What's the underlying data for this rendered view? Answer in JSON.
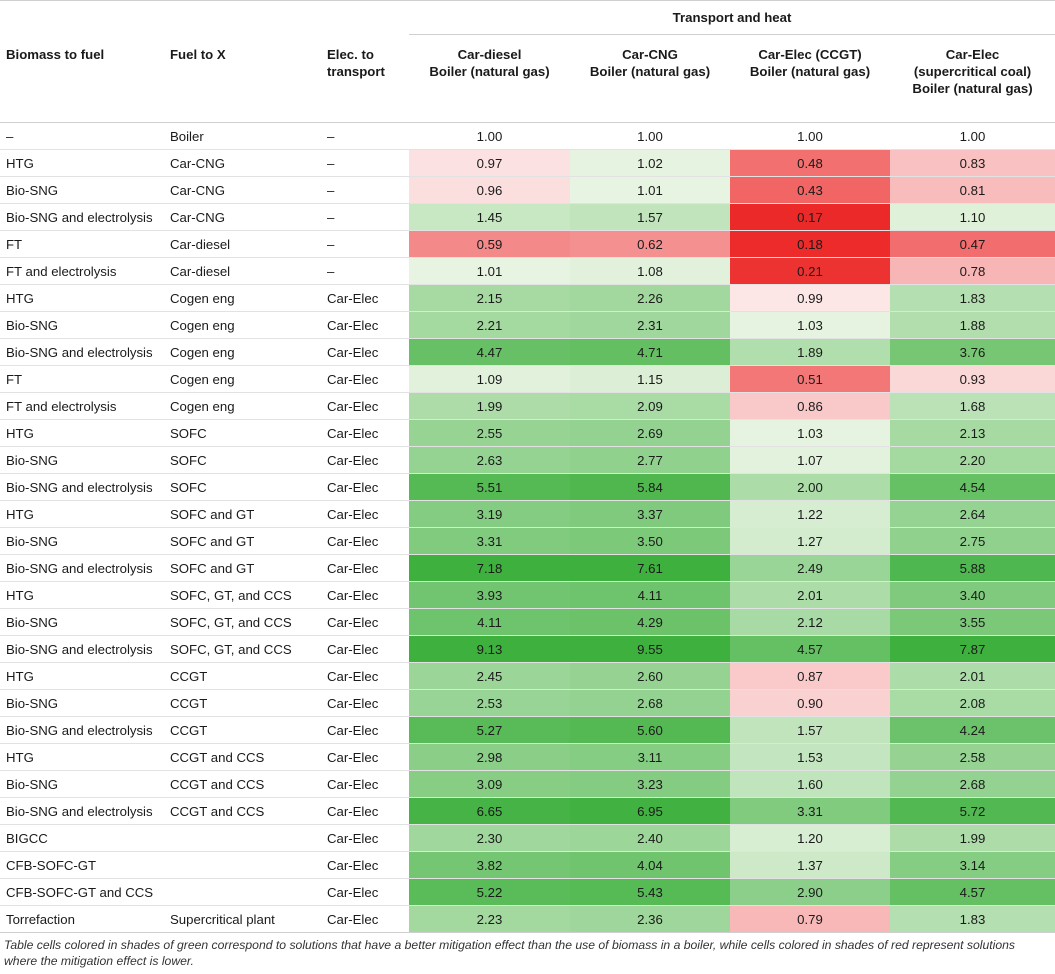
{
  "header": {
    "group": "Transport and heat",
    "col1": "Biomass to fuel",
    "col2": "Fuel to X",
    "col3": [
      "Elec. to",
      "transport"
    ],
    "col4": [
      "Car-diesel",
      "Boiler (natural gas)"
    ],
    "col5": [
      "Car-CNG",
      "Boiler (natural gas)"
    ],
    "col6": [
      "Car-Elec (CCGT)",
      "Boiler (natural gas)"
    ],
    "col7": [
      "Car-Elec",
      "(supercritical coal)",
      "Boiler (natural gas)"
    ]
  },
  "rows": [
    {
      "bio": "–",
      "fuel": "Boiler",
      "elec": "–",
      "v": [
        "1.00",
        "1.00",
        "1.00",
        "1.00"
      ]
    },
    {
      "bio": "HTG",
      "fuel": "Car-CNG",
      "elec": "–",
      "v": [
        "0.97",
        "1.02",
        "0.48",
        "0.83"
      ]
    },
    {
      "bio": "Bio-SNG",
      "fuel": "Car-CNG",
      "elec": "–",
      "v": [
        "0.96",
        "1.01",
        "0.43",
        "0.81"
      ]
    },
    {
      "bio": "Bio-SNG and electrolysis",
      "fuel": "Car-CNG",
      "elec": "–",
      "v": [
        "1.45",
        "1.57",
        "0.17",
        "1.10"
      ]
    },
    {
      "bio": "FT",
      "fuel": "Car-diesel",
      "elec": "–",
      "v": [
        "0.59",
        "0.62",
        "0.18",
        "0.47"
      ]
    },
    {
      "bio": "FT and electrolysis",
      "fuel": "Car-diesel",
      "elec": "–",
      "v": [
        "1.01",
        "1.08",
        "0.21",
        "0.78"
      ]
    },
    {
      "bio": "HTG",
      "fuel": "Cogen eng",
      "elec": "Car-Elec",
      "v": [
        "2.15",
        "2.26",
        "0.99",
        "1.83"
      ]
    },
    {
      "bio": "Bio-SNG",
      "fuel": "Cogen eng",
      "elec": "Car-Elec",
      "v": [
        "2.21",
        "2.31",
        "1.03",
        "1.88"
      ]
    },
    {
      "bio": "Bio-SNG and electrolysis",
      "fuel": "Cogen eng",
      "elec": "Car-Elec",
      "v": [
        "4.47",
        "4.71",
        "1.89",
        "3.76"
      ]
    },
    {
      "bio": "FT",
      "fuel": "Cogen eng",
      "elec": "Car-Elec",
      "v": [
        "1.09",
        "1.15",
        "0.51",
        "0.93"
      ]
    },
    {
      "bio": "FT and electrolysis",
      "fuel": "Cogen eng",
      "elec": "Car-Elec",
      "v": [
        "1.99",
        "2.09",
        "0.86",
        "1.68"
      ]
    },
    {
      "bio": "HTG",
      "fuel": "SOFC",
      "elec": "Car-Elec",
      "v": [
        "2.55",
        "2.69",
        "1.03",
        "2.13"
      ]
    },
    {
      "bio": "Bio-SNG",
      "fuel": "SOFC",
      "elec": "Car-Elec",
      "v": [
        "2.63",
        "2.77",
        "1.07",
        "2.20"
      ]
    },
    {
      "bio": "Bio-SNG and electrolysis",
      "fuel": "SOFC",
      "elec": "Car-Elec",
      "v": [
        "5.51",
        "5.84",
        "2.00",
        "4.54"
      ]
    },
    {
      "bio": "HTG",
      "fuel": "SOFC and GT",
      "elec": "Car-Elec",
      "v": [
        "3.19",
        "3.37",
        "1.22",
        "2.64"
      ]
    },
    {
      "bio": "Bio-SNG",
      "fuel": "SOFC and GT",
      "elec": "Car-Elec",
      "v": [
        "3.31",
        "3.50",
        "1.27",
        "2.75"
      ]
    },
    {
      "bio": "Bio-SNG and electrolysis",
      "fuel": "SOFC and GT",
      "elec": "Car-Elec",
      "v": [
        "7.18",
        "7.61",
        "2.49",
        "5.88"
      ]
    },
    {
      "bio": "HTG",
      "fuel": "SOFC, GT, and CCS",
      "elec": "Car-Elec",
      "v": [
        "3.93",
        "4.11",
        "2.01",
        "3.40"
      ]
    },
    {
      "bio": "Bio-SNG",
      "fuel": "SOFC, GT, and CCS",
      "elec": "Car-Elec",
      "v": [
        "4.11",
        "4.29",
        "2.12",
        "3.55"
      ]
    },
    {
      "bio": "Bio-SNG and electrolysis",
      "fuel": "SOFC, GT, and CCS",
      "elec": "Car-Elec",
      "v": [
        "9.13",
        "9.55",
        "4.57",
        "7.87"
      ]
    },
    {
      "bio": "HTG",
      "fuel": "CCGT",
      "elec": "Car-Elec",
      "v": [
        "2.45",
        "2.60",
        "0.87",
        "2.01"
      ]
    },
    {
      "bio": "Bio-SNG",
      "fuel": "CCGT",
      "elec": "Car-Elec",
      "v": [
        "2.53",
        "2.68",
        "0.90",
        "2.08"
      ]
    },
    {
      "bio": "Bio-SNG and electrolysis",
      "fuel": "CCGT",
      "elec": "Car-Elec",
      "v": [
        "5.27",
        "5.60",
        "1.57",
        "4.24"
      ]
    },
    {
      "bio": "HTG",
      "fuel": "CCGT and CCS",
      "elec": "Car-Elec",
      "v": [
        "2.98",
        "3.11",
        "1.53",
        "2.58"
      ]
    },
    {
      "bio": "Bio-SNG",
      "fuel": "CCGT and CCS",
      "elec": "Car-Elec",
      "v": [
        "3.09",
        "3.23",
        "1.60",
        "2.68"
      ]
    },
    {
      "bio": "Bio-SNG and electrolysis",
      "fuel": "CCGT and CCS",
      "elec": "Car-Elec",
      "v": [
        "6.65",
        "6.95",
        "3.31",
        "5.72"
      ]
    },
    {
      "bio": "BIGCC",
      "fuel": "",
      "elec": "Car-Elec",
      "v": [
        "2.30",
        "2.40",
        "1.20",
        "1.99"
      ]
    },
    {
      "bio": "CFB-SOFC-GT",
      "fuel": "",
      "elec": "Car-Elec",
      "v": [
        "3.82",
        "4.04",
        "1.37",
        "3.14"
      ]
    },
    {
      "bio": "CFB-SOFC-GT and CCS",
      "fuel": "",
      "elec": "Car-Elec",
      "v": [
        "5.22",
        "5.43",
        "2.90",
        "4.57"
      ]
    },
    {
      "bio": "Torrefaction",
      "fuel": "Supercritical plant",
      "elec": "Car-Elec",
      "v": [
        "2.23",
        "2.36",
        "0.79",
        "1.83"
      ]
    }
  ],
  "footnote": "Table cells colored in shades of green correspond to solutions that have a better mitigation effect than the use of biomass in a boiler, while cells colored in shades of red represent solutions where the mitigation effect is lower."
}
